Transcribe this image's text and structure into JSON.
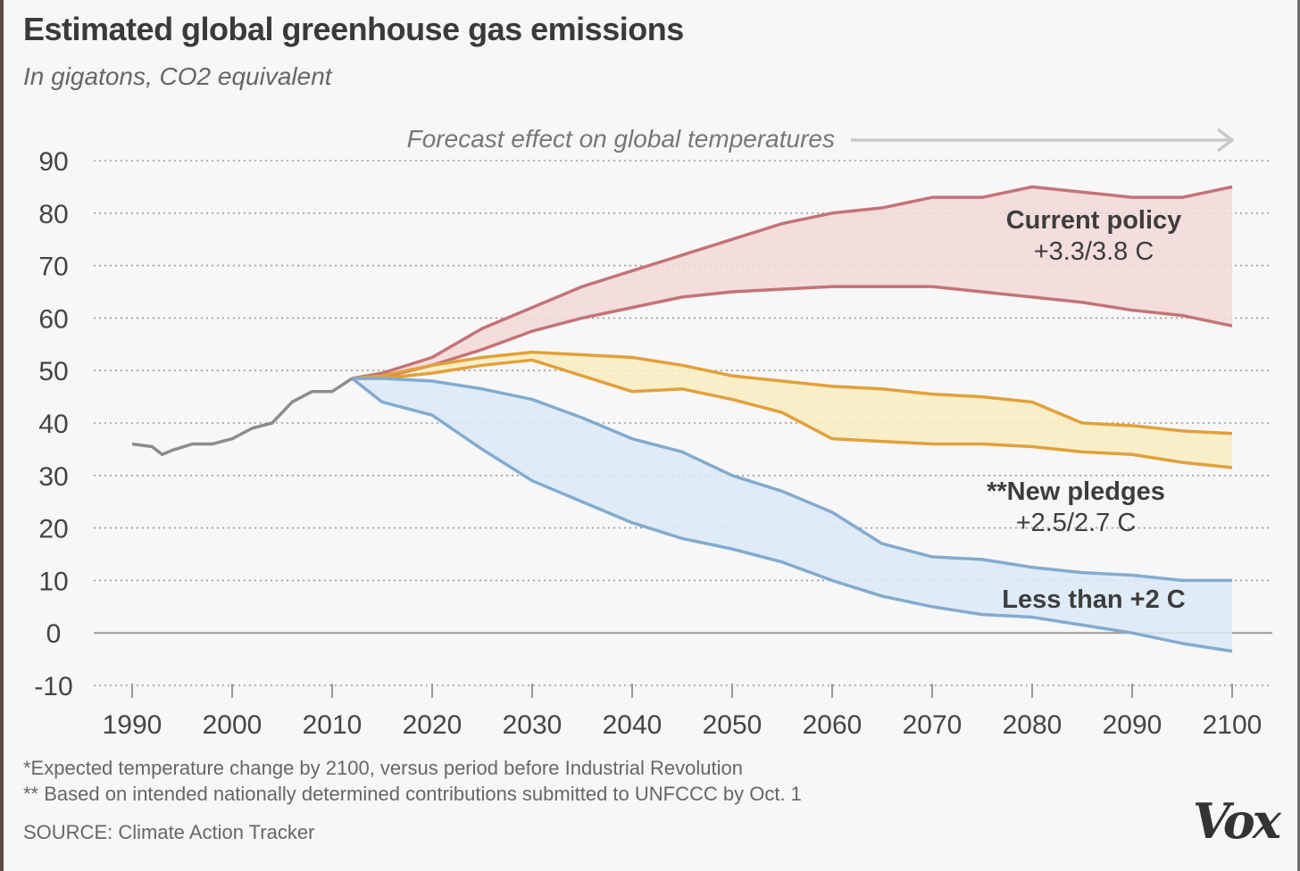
{
  "header": {
    "title": "Estimated global greenhouse gas emissions",
    "subtitle": "In gigatons, CO2 equivalent"
  },
  "chart_data": {
    "type": "area",
    "ylim": [
      -10,
      90
    ],
    "xlim": [
      1990,
      2100
    ],
    "y_ticks": [
      90,
      80,
      70,
      60,
      50,
      40,
      30,
      20,
      10,
      0,
      -10
    ],
    "x_ticks": [
      1990,
      2000,
      2010,
      2020,
      2030,
      2040,
      2050,
      2060,
      2070,
      2080,
      2090,
      2100
    ],
    "grid": "dotted horizontal",
    "forecast_annotation": "Forecast effect on global temperatures",
    "historical": {
      "x": [
        1990,
        1992,
        1993,
        1994,
        1996,
        1998,
        2000,
        2002,
        2004,
        2006,
        2008,
        2010,
        2012
      ],
      "y": [
        36,
        35.5,
        34,
        34.8,
        36,
        36,
        37,
        39,
        40,
        44,
        46,
        46,
        48.5
      ]
    },
    "series": [
      {
        "name": "Current policy",
        "label_line2": "+3.3/3.8 C",
        "color": "#c47378",
        "fill": "#f2d8d8",
        "x": [
          2012,
          2015,
          2020,
          2025,
          2030,
          2035,
          2040,
          2045,
          2050,
          2055,
          2060,
          2065,
          2070,
          2075,
          2080,
          2085,
          2090,
          2095,
          2100
        ],
        "upper": [
          48.5,
          49.5,
          52.5,
          58,
          62,
          66,
          69,
          72,
          75,
          78,
          80,
          81,
          83,
          83,
          85,
          84,
          83,
          83,
          85
        ],
        "lower": [
          48.5,
          48.7,
          51,
          54,
          57.5,
          60,
          62,
          64,
          65,
          65.5,
          66,
          66,
          66,
          65,
          64,
          63,
          61.5,
          60.5,
          58.5
        ]
      },
      {
        "name": "**New pledges",
        "label_line2": "+2.5/2.7 C",
        "color": "#e2a03a",
        "fill": "#f8ecc0",
        "x": [
          2012,
          2015,
          2020,
          2025,
          2030,
          2035,
          2040,
          2045,
          2050,
          2055,
          2060,
          2065,
          2070,
          2075,
          2080,
          2085,
          2090,
          2095,
          2100
        ],
        "upper": [
          48.5,
          49,
          51,
          52.5,
          53.5,
          53,
          52.5,
          51,
          49,
          48,
          47,
          46.5,
          45.5,
          45,
          44,
          40,
          39.5,
          38.5,
          38
        ],
        "lower": [
          48.5,
          48.5,
          49.5,
          51,
          52,
          49,
          46,
          46.5,
          44.5,
          42,
          37,
          36.5,
          36,
          36,
          35.5,
          34.5,
          34,
          32.5,
          31.5
        ]
      },
      {
        "name": "Less than +2 C",
        "label_line2": "",
        "color": "#82abd0",
        "fill": "#dbeaf7",
        "x": [
          2012,
          2015,
          2020,
          2025,
          2030,
          2035,
          2040,
          2045,
          2050,
          2055,
          2060,
          2065,
          2070,
          2075,
          2080,
          2085,
          2090,
          2095,
          2100
        ],
        "upper": [
          48.5,
          48.5,
          48,
          46.5,
          44.5,
          41,
          37,
          34.5,
          30,
          27,
          23,
          17,
          14.5,
          14,
          12.5,
          11.5,
          11,
          10,
          10
        ],
        "lower": [
          48.5,
          44,
          41.5,
          35,
          29,
          25,
          21,
          18,
          16,
          13.5,
          10,
          7,
          5,
          3.5,
          3,
          1.5,
          0,
          -2,
          -3.5
        ]
      }
    ]
  },
  "footnotes": [
    "*Expected temperature change  by 2100, versus period before Industrial Revolution",
    "** Based on intended nationally determined contributions submitted to UNFCCC by Oct. 1"
  ],
  "source": "SOURCE: Climate Action Tracker",
  "logo_text": "Vox"
}
